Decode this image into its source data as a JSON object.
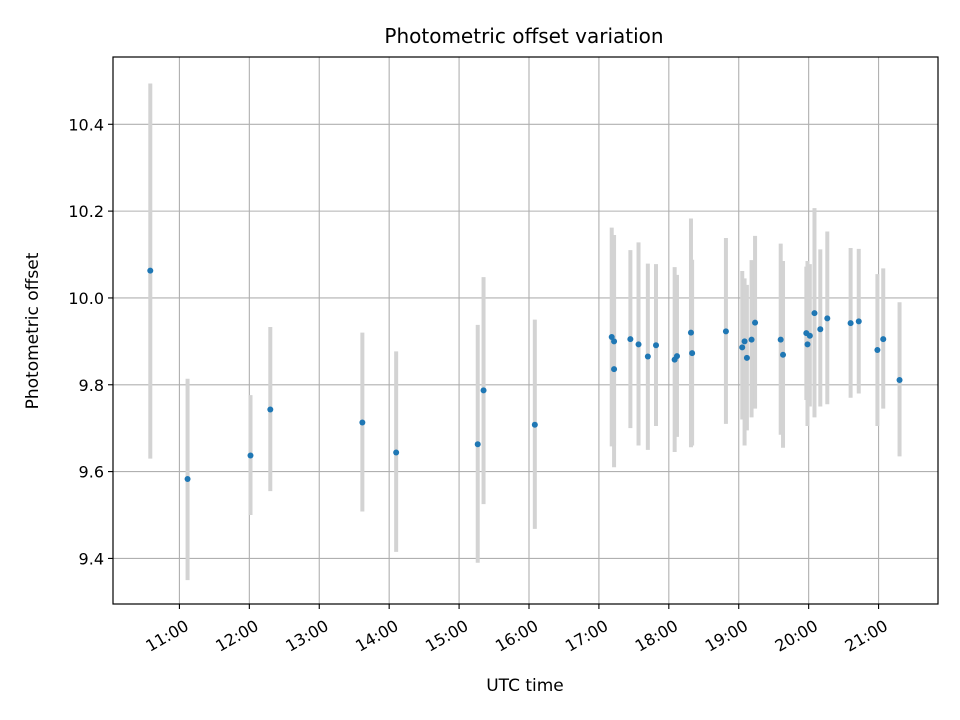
{
  "chart_data": {
    "type": "scatter",
    "title": "Photometric offset variation",
    "xlabel": "UTC time",
    "ylabel": "Photometric offset",
    "xlim": [
      "10:03",
      "21:51"
    ],
    "ylim": [
      9.295,
      10.555
    ],
    "x_ticks": [
      "11:00",
      "12:00",
      "13:00",
      "14:00",
      "15:00",
      "16:00",
      "17:00",
      "18:00",
      "19:00",
      "20:00",
      "21:00"
    ],
    "y_ticks": [
      9.4,
      9.6,
      9.8,
      10.0,
      10.2,
      10.4
    ],
    "grid": true,
    "marker_color": "#1f77b4",
    "errorbar_color": "#d3d3d3",
    "points": [
      {
        "t": "10:35",
        "y": 10.063,
        "lo": 9.63,
        "hi": 10.494
      },
      {
        "t": "11:07",
        "y": 9.583,
        "lo": 9.35,
        "hi": 9.814
      },
      {
        "t": "12:01",
        "y": 9.637,
        "lo": 9.5,
        "hi": 9.776
      },
      {
        "t": "12:18",
        "y": 9.743,
        "lo": 9.555,
        "hi": 9.933
      },
      {
        "t": "13:37",
        "y": 9.713,
        "lo": 9.508,
        "hi": 9.92
      },
      {
        "t": "14:06",
        "y": 9.644,
        "lo": 9.415,
        "hi": 9.877
      },
      {
        "t": "15:16",
        "y": 9.663,
        "lo": 9.39,
        "hi": 9.938
      },
      {
        "t": "15:21",
        "y": 9.787,
        "lo": 9.525,
        "hi": 10.048
      },
      {
        "t": "16:05",
        "y": 9.708,
        "lo": 9.468,
        "hi": 9.95
      },
      {
        "t": "17:11",
        "y": 9.91,
        "lo": 9.658,
        "hi": 10.162
      },
      {
        "t": "17:13",
        "y": 9.836,
        "lo": 9.61,
        "hi": 10.065
      },
      {
        "t": "17:13",
        "y": 9.9,
        "lo": 9.66,
        "hi": 10.145
      },
      {
        "t": "17:27",
        "y": 9.905,
        "lo": 9.7,
        "hi": 10.11
      },
      {
        "t": "17:34",
        "y": 9.893,
        "lo": 9.66,
        "hi": 10.128
      },
      {
        "t": "17:42",
        "y": 9.865,
        "lo": 9.65,
        "hi": 10.079
      },
      {
        "t": "17:49",
        "y": 9.891,
        "lo": 9.705,
        "hi": 10.078
      },
      {
        "t": "18:05",
        "y": 9.858,
        "lo": 9.645,
        "hi": 10.071
      },
      {
        "t": "18:07",
        "y": 9.866,
        "lo": 9.68,
        "hi": 10.053
      },
      {
        "t": "18:19",
        "y": 9.92,
        "lo": 9.656,
        "hi": 10.183
      },
      {
        "t": "18:20",
        "y": 9.873,
        "lo": 9.66,
        "hi": 10.088
      },
      {
        "t": "18:49",
        "y": 9.923,
        "lo": 9.71,
        "hi": 10.138
      },
      {
        "t": "19:03",
        "y": 9.886,
        "lo": 9.72,
        "hi": 10.062
      },
      {
        "t": "19:05",
        "y": 9.9,
        "lo": 9.66,
        "hi": 10.045
      },
      {
        "t": "19:07",
        "y": 9.862,
        "lo": 9.695,
        "hi": 10.03
      },
      {
        "t": "19:11",
        "y": 9.904,
        "lo": 9.725,
        "hi": 10.087
      },
      {
        "t": "19:14",
        "y": 9.943,
        "lo": 9.745,
        "hi": 10.143
      },
      {
        "t": "19:36",
        "y": 9.904,
        "lo": 9.685,
        "hi": 10.125
      },
      {
        "t": "19:38",
        "y": 9.869,
        "lo": 9.655,
        "hi": 10.085
      },
      {
        "t": "19:58",
        "y": 9.919,
        "lo": 9.765,
        "hi": 10.072
      },
      {
        "t": "19:59",
        "y": 9.893,
        "lo": 9.705,
        "hi": 10.085
      },
      {
        "t": "20:01",
        "y": 9.913,
        "lo": 9.75,
        "hi": 10.078
      },
      {
        "t": "20:05",
        "y": 9.965,
        "lo": 9.725,
        "hi": 10.207
      },
      {
        "t": "20:10",
        "y": 9.928,
        "lo": 9.75,
        "hi": 10.112
      },
      {
        "t": "20:16",
        "y": 9.953,
        "lo": 9.755,
        "hi": 10.153
      },
      {
        "t": "20:36",
        "y": 9.942,
        "lo": 9.77,
        "hi": 10.115
      },
      {
        "t": "20:43",
        "y": 9.946,
        "lo": 9.78,
        "hi": 10.113
      },
      {
        "t": "20:59",
        "y": 9.88,
        "lo": 9.705,
        "hi": 10.055
      },
      {
        "t": "21:04",
        "y": 9.905,
        "lo": 9.745,
        "hi": 10.068
      },
      {
        "t": "21:18",
        "y": 9.811,
        "lo": 9.635,
        "hi": 9.99
      }
    ]
  }
}
